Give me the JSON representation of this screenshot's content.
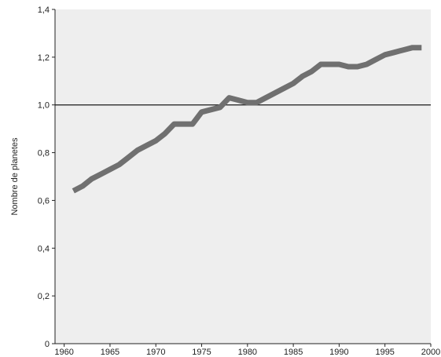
{
  "chart_data": {
    "type": "line",
    "title": "",
    "xlabel": "",
    "ylabel": "Nombre de planetes",
    "xlim": [
      1959,
      2000
    ],
    "ylim": [
      0,
      1.4
    ],
    "x_ticks": [
      1960,
      1965,
      1970,
      1975,
      1980,
      1985,
      1990,
      1995,
      2000
    ],
    "x_tick_labels": [
      "1960",
      "1965",
      "1970",
      "1975",
      "1980",
      "1985",
      "1990",
      "1995",
      "2000"
    ],
    "y_ticks": [
      0,
      0.2,
      0.4,
      0.6,
      0.8,
      1.0,
      1.2,
      1.4
    ],
    "y_tick_labels": [
      "0",
      "0,2",
      "0,4",
      "0,6",
      "0,8",
      "1,0",
      "1,2",
      "1,4"
    ],
    "reference_line": {
      "y": 1.0,
      "color": "#1a1a1a"
    },
    "grid": false,
    "series": [
      {
        "color": "#707070",
        "x": [
          1961,
          1962,
          1963,
          1964,
          1965,
          1966,
          1967,
          1968,
          1969,
          1970,
          1971,
          1972,
          1973,
          1974,
          1975,
          1976,
          1977,
          1978,
          1979,
          1980,
          1981,
          1982,
          1983,
          1984,
          1985,
          1986,
          1987,
          1988,
          1989,
          1990,
          1991,
          1992,
          1993,
          1994,
          1995,
          1996,
          1997,
          1998,
          1999
        ],
        "y": [
          0.64,
          0.66,
          0.69,
          0.71,
          0.73,
          0.75,
          0.78,
          0.81,
          0.83,
          0.85,
          0.88,
          0.92,
          0.92,
          0.92,
          0.97,
          0.98,
          0.99,
          1.03,
          1.02,
          1.01,
          1.01,
          1.03,
          1.05,
          1.07,
          1.09,
          1.12,
          1.14,
          1.17,
          1.17,
          1.17,
          1.16,
          1.16,
          1.17,
          1.19,
          1.21,
          1.22,
          1.23,
          1.24,
          1.24
        ]
      }
    ],
    "colors": {
      "plot_background": "#eeeeee",
      "axis": "#222222",
      "line": "#707070"
    }
  }
}
